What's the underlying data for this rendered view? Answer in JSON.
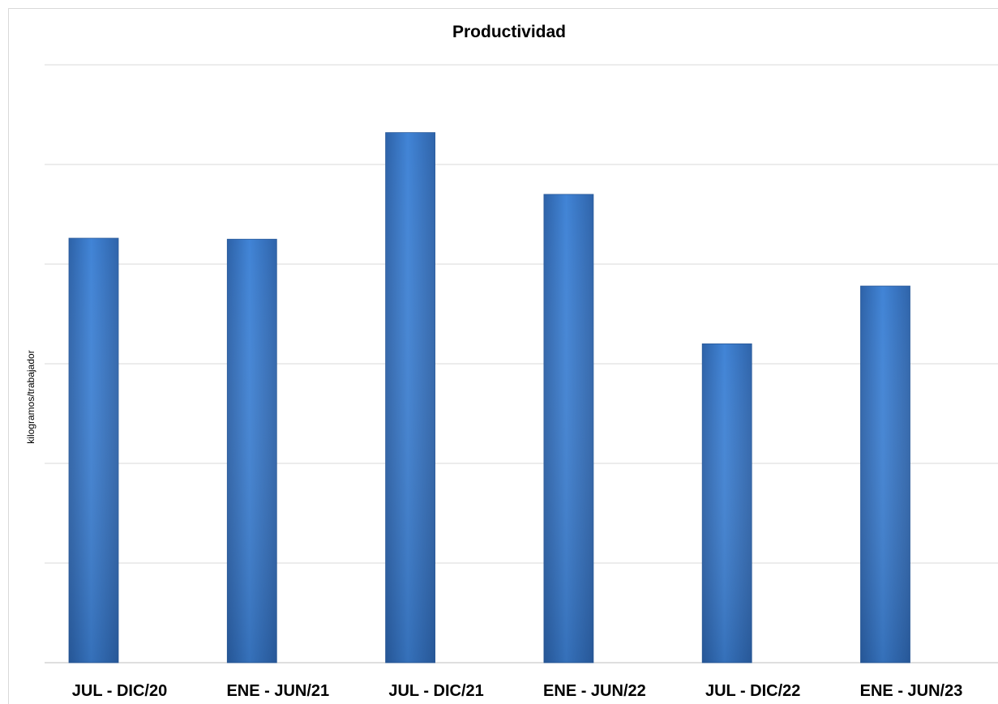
{
  "chart_data": {
    "type": "bar",
    "title": "Productividad",
    "xlabel": "",
    "ylabel": "kilogramos/trabajador",
    "categories": [
      "JUL - DIC/20",
      "ENE - JUN/21",
      "JUL - DIC/21",
      "ENE - JUN/22",
      "JUL - DIC/22",
      "ENE - JUN/23"
    ],
    "values": [
      4.26,
      4.25,
      5.32,
      4.7,
      3.2,
      3.78
    ],
    "ylim": [
      0,
      6
    ],
    "grid": true,
    "legend": "none",
    "bar_color": "#3b78c8"
  }
}
